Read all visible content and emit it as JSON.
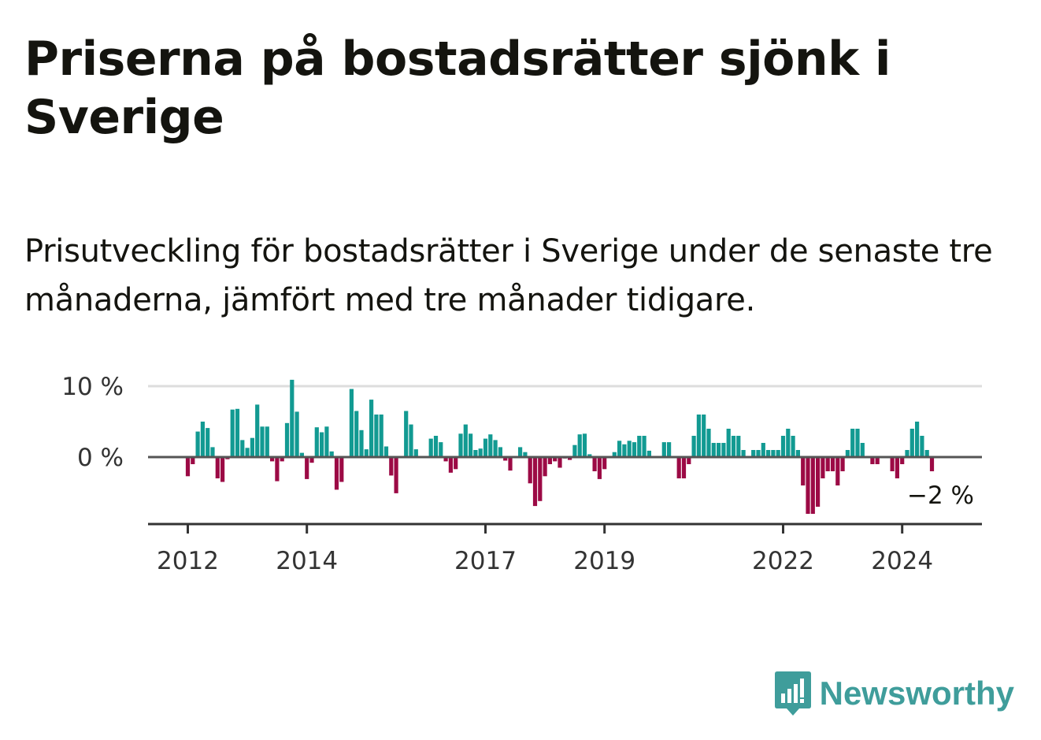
{
  "title": "Priserna på bostadsrätter sjönk i Sverige",
  "subtitle": "Prisutveckling för bostadsrätter i Sverige under de senaste tre månaderna, jämfört med tre månader tidigare.",
  "logo": {
    "name": "Newsworthy",
    "icon": "bar-chart-speech-bubble-icon"
  },
  "colors": {
    "positive": "#129a92",
    "negative": "#9c0a45",
    "axis": "#555555",
    "grid": "#dddddd"
  },
  "chart_data": {
    "type": "bar",
    "x_start": "2012-01",
    "x_step": "month",
    "ylim": [
      -9.5,
      10
    ],
    "yticks": [
      {
        "value": 10,
        "label": "10 %"
      },
      {
        "value": 0,
        "label": "0 %"
      }
    ],
    "xticks": [
      "2012",
      "2014",
      "2017",
      "2019",
      "2022",
      "2024"
    ],
    "end_label": "−2 %",
    "values": [
      -2.7,
      -1.0,
      3.6,
      5.0,
      4.1,
      1.4,
      -3.0,
      -3.5,
      -0.3,
      6.7,
      6.8,
      2.4,
      1.3,
      2.7,
      7.4,
      4.3,
      4.3,
      -0.6,
      -3.4,
      -0.6,
      4.8,
      10.9,
      6.4,
      0.6,
      -3.1,
      -0.8,
      4.2,
      3.5,
      4.3,
      0.8,
      -4.6,
      -3.5,
      0.1,
      9.6,
      6.5,
      3.8,
      1.1,
      8.1,
      6.0,
      6.0,
      1.5,
      -2.6,
      -5.1,
      0.0,
      6.5,
      4.6,
      1.1,
      0.1,
      0.1,
      2.6,
      3.0,
      2.1,
      -0.6,
      -2.2,
      -1.7,
      3.3,
      4.6,
      3.3,
      1.0,
      1.2,
      2.6,
      3.2,
      2.4,
      1.4,
      -0.5,
      -1.9,
      0.1,
      1.4,
      0.7,
      -3.7,
      -6.9,
      -6.2,
      -2.7,
      -1.0,
      -0.6,
      -1.5,
      -0.2,
      -0.4,
      1.7,
      3.2,
      3.3,
      0.4,
      -2.0,
      -3.1,
      -1.7,
      0.1,
      0.7,
      2.3,
      1.8,
      2.3,
      2.1,
      3.0,
      3.0,
      0.9,
      0.1,
      0.0,
      2.1,
      2.1,
      0.0,
      -3.0,
      -3.0,
      -1.0,
      3.0,
      6.0,
      6.0,
      4.0,
      2.0,
      2.0,
      2.0,
      4.0,
      3.0,
      3.0,
      1.0,
      0.0,
      1.0,
      1.0,
      2.0,
      1.0,
      1.0,
      1.0,
      3.0,
      4.0,
      3.0,
      1.0,
      -4.0,
      -8.0,
      -8.0,
      -7.0,
      -3.0,
      -2.0,
      -2.0,
      -4.0,
      -2.0,
      1.0,
      4.0,
      4.0,
      2.0,
      0.0,
      -1.0,
      -1.0,
      0.0,
      0.0,
      -2.0,
      -3.0,
      -1.0,
      1.0,
      4.0,
      5.0,
      3.0,
      1.0,
      -2.0
    ]
  }
}
